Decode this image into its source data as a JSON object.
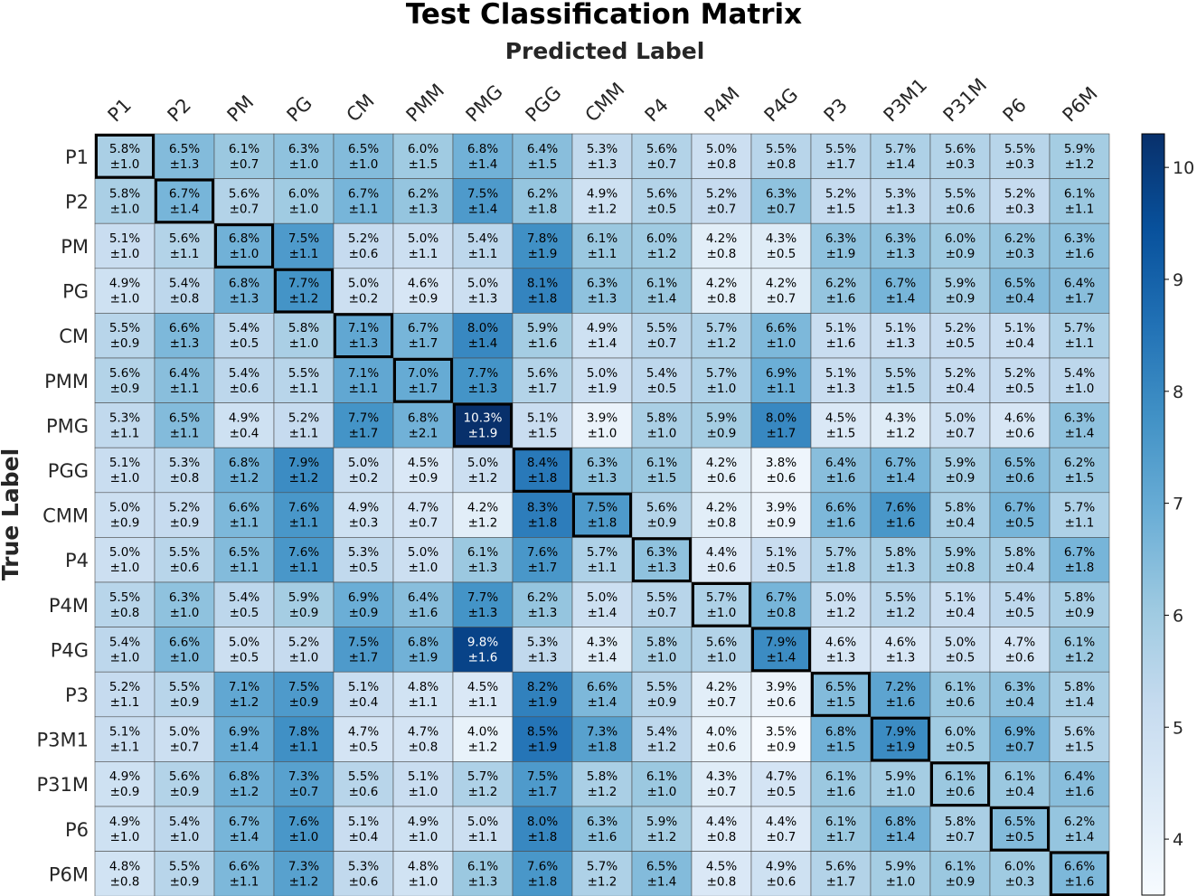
{
  "chart_data": {
    "type": "heatmap",
    "title": "Test Classification Matrix",
    "xlabel": "Predicted Label",
    "ylabel": "True Label",
    "labels": [
      "P1",
      "P2",
      "PM",
      "PG",
      "CM",
      "PMM",
      "PMG",
      "PGG",
      "CMM",
      "P4",
      "P4M",
      "P4G",
      "P3",
      "P3M1",
      "P31M",
      "P6",
      "P6M"
    ],
    "means": [
      [
        5.8,
        6.5,
        6.1,
        6.3,
        6.5,
        6.0,
        6.8,
        6.4,
        5.3,
        5.6,
        5.0,
        5.5,
        5.5,
        5.7,
        5.6,
        5.5,
        5.9
      ],
      [
        5.8,
        6.7,
        5.6,
        6.0,
        6.7,
        6.2,
        7.5,
        6.2,
        4.9,
        5.6,
        5.2,
        6.3,
        5.2,
        5.3,
        5.5,
        5.2,
        6.1
      ],
      [
        5.1,
        5.6,
        6.8,
        7.5,
        5.2,
        5.0,
        5.4,
        7.8,
        6.1,
        6.0,
        4.2,
        4.3,
        6.3,
        6.3,
        6.0,
        6.2,
        6.3
      ],
      [
        4.9,
        5.4,
        6.8,
        7.7,
        5.0,
        4.6,
        5.0,
        8.1,
        6.3,
        6.1,
        4.2,
        4.2,
        6.2,
        6.7,
        5.9,
        6.5,
        6.4
      ],
      [
        5.5,
        6.6,
        5.4,
        5.8,
        7.1,
        6.7,
        8.0,
        5.9,
        4.9,
        5.5,
        5.7,
        6.6,
        5.1,
        5.1,
        5.2,
        5.1,
        5.7
      ],
      [
        5.6,
        6.4,
        5.4,
        5.5,
        7.1,
        7.0,
        7.7,
        5.6,
        5.0,
        5.4,
        5.7,
        6.9,
        5.1,
        5.5,
        5.2,
        5.2,
        5.4
      ],
      [
        5.3,
        6.5,
        4.9,
        5.2,
        7.7,
        6.8,
        10.3,
        5.1,
        3.9,
        5.8,
        5.9,
        8.0,
        4.5,
        4.3,
        5.0,
        4.6,
        6.3
      ],
      [
        5.1,
        5.3,
        6.8,
        7.9,
        5.0,
        4.5,
        5.0,
        8.4,
        6.3,
        6.1,
        4.2,
        3.8,
        6.4,
        6.7,
        5.9,
        6.5,
        6.2
      ],
      [
        5.0,
        5.2,
        6.6,
        7.6,
        4.9,
        4.7,
        4.2,
        8.3,
        7.5,
        5.6,
        4.2,
        3.9,
        6.6,
        7.6,
        5.8,
        6.7,
        5.7
      ],
      [
        5.0,
        5.5,
        6.5,
        7.6,
        5.3,
        5.0,
        6.1,
        7.6,
        5.7,
        6.3,
        4.4,
        5.1,
        5.7,
        5.8,
        5.9,
        5.8,
        6.7
      ],
      [
        5.5,
        6.3,
        5.4,
        5.9,
        6.9,
        6.4,
        7.7,
        6.2,
        5.0,
        5.5,
        5.7,
        6.7,
        5.0,
        5.5,
        5.1,
        5.4,
        5.8
      ],
      [
        5.4,
        6.6,
        5.0,
        5.2,
        7.5,
        6.8,
        9.8,
        5.3,
        4.3,
        5.8,
        5.6,
        7.9,
        4.6,
        4.6,
        5.0,
        4.7,
        6.1
      ],
      [
        5.2,
        5.5,
        7.1,
        7.5,
        5.1,
        4.8,
        4.5,
        8.2,
        6.6,
        5.5,
        4.2,
        3.9,
        6.5,
        7.2,
        6.1,
        6.3,
        5.8
      ],
      [
        5.1,
        5.0,
        6.9,
        7.8,
        4.7,
        4.7,
        4.0,
        8.5,
        7.3,
        5.4,
        4.0,
        3.5,
        6.8,
        7.9,
        6.0,
        6.9,
        5.6
      ],
      [
        4.9,
        5.6,
        6.8,
        7.3,
        5.5,
        5.1,
        5.7,
        7.5,
        5.8,
        6.1,
        4.3,
        4.7,
        6.1,
        5.9,
        6.1,
        6.1,
        6.4
      ],
      [
        4.9,
        5.4,
        6.7,
        7.6,
        5.1,
        4.9,
        5.0,
        8.0,
        6.3,
        5.9,
        4.4,
        4.4,
        6.1,
        6.8,
        5.8,
        6.5,
        6.2
      ],
      [
        4.8,
        5.5,
        6.6,
        7.3,
        5.3,
        4.8,
        6.1,
        7.6,
        5.7,
        6.5,
        4.5,
        4.9,
        5.6,
        5.9,
        6.1,
        6.0,
        6.6
      ]
    ],
    "stds": [
      [
        1.0,
        1.3,
        0.7,
        1.0,
        1.0,
        1.5,
        1.4,
        1.5,
        1.3,
        0.7,
        0.8,
        0.8,
        1.7,
        1.4,
        0.3,
        0.3,
        1.2
      ],
      [
        1.0,
        1.4,
        0.7,
        1.0,
        1.1,
        1.3,
        1.4,
        1.8,
        1.2,
        0.5,
        0.7,
        0.7,
        1.5,
        1.3,
        0.6,
        0.3,
        1.1
      ],
      [
        1.0,
        1.1,
        1.0,
        1.1,
        0.6,
        1.1,
        1.1,
        1.9,
        1.1,
        1.2,
        0.8,
        0.5,
        1.9,
        1.3,
        0.9,
        0.3,
        1.6
      ],
      [
        1.0,
        0.8,
        1.3,
        1.2,
        0.2,
        0.9,
        1.3,
        1.8,
        1.3,
        1.4,
        0.8,
        0.7,
        1.6,
        1.4,
        0.9,
        0.4,
        1.7
      ],
      [
        0.9,
        1.3,
        0.5,
        1.0,
        1.3,
        1.7,
        1.4,
        1.6,
        1.4,
        0.7,
        1.2,
        1.0,
        1.6,
        1.3,
        0.5,
        0.4,
        1.1
      ],
      [
        0.9,
        1.1,
        0.6,
        1.1,
        1.1,
        1.7,
        1.3,
        1.7,
        1.9,
        0.5,
        1.0,
        1.1,
        1.3,
        1.5,
        0.4,
        0.5,
        1.0
      ],
      [
        1.1,
        1.1,
        0.4,
        1.1,
        1.7,
        2.1,
        1.9,
        1.5,
        1.0,
        1.0,
        0.9,
        1.7,
        1.5,
        1.2,
        0.7,
        0.6,
        1.4
      ],
      [
        1.0,
        0.8,
        1.2,
        1.2,
        0.2,
        0.9,
        1.2,
        1.8,
        1.3,
        1.5,
        0.6,
        0.6,
        1.6,
        1.4,
        0.9,
        0.6,
        1.5
      ],
      [
        0.9,
        0.9,
        1.1,
        1.1,
        0.3,
        0.7,
        1.2,
        1.8,
        1.8,
        0.9,
        0.8,
        0.9,
        1.6,
        1.6,
        0.4,
        0.5,
        1.1
      ],
      [
        1.0,
        0.6,
        1.1,
        1.1,
        0.5,
        1.0,
        1.3,
        1.7,
        1.1,
        1.3,
        0.6,
        0.5,
        1.8,
        1.3,
        0.8,
        0.4,
        1.8
      ],
      [
        0.8,
        1.0,
        0.5,
        0.9,
        0.9,
        1.6,
        1.3,
        1.3,
        1.4,
        0.7,
        1.0,
        0.8,
        1.2,
        1.2,
        0.4,
        0.5,
        0.9
      ],
      [
        1.0,
        1.0,
        0.5,
        1.0,
        1.7,
        1.9,
        1.6,
        1.3,
        1.4,
        1.0,
        1.0,
        1.4,
        1.3,
        1.3,
        0.5,
        0.6,
        1.2
      ],
      [
        1.1,
        0.9,
        1.2,
        0.9,
        0.4,
        1.1,
        1.1,
        1.9,
        1.4,
        0.9,
        0.7,
        0.6,
        1.5,
        1.6,
        0.6,
        0.4,
        1.4
      ],
      [
        1.1,
        0.7,
        1.4,
        1.1,
        0.5,
        0.8,
        1.2,
        1.9,
        1.8,
        1.2,
        0.6,
        0.9,
        1.5,
        1.9,
        0.5,
        0.7,
        1.5
      ],
      [
        0.9,
        0.9,
        1.2,
        0.7,
        0.6,
        1.0,
        1.2,
        1.7,
        1.2,
        1.0,
        0.7,
        0.5,
        1.6,
        1.0,
        0.6,
        0.4,
        1.6
      ],
      [
        1.0,
        1.0,
        1.4,
        1.0,
        0.4,
        1.0,
        1.1,
        1.8,
        1.6,
        1.2,
        0.8,
        0.7,
        1.7,
        1.4,
        0.7,
        0.5,
        1.4
      ],
      [
        0.8,
        0.9,
        1.1,
        1.2,
        0.6,
        1.0,
        1.3,
        1.8,
        1.2,
        1.4,
        0.8,
        0.6,
        1.7,
        1.0,
        0.9,
        0.3,
        1.6
      ]
    ],
    "colorbar": {
      "colormap": "Blues",
      "range": [
        3.5,
        10.3
      ],
      "ticks": [
        4,
        5,
        6,
        7,
        8,
        9,
        10
      ]
    },
    "diagonal_highlight": true,
    "grid": true
  }
}
